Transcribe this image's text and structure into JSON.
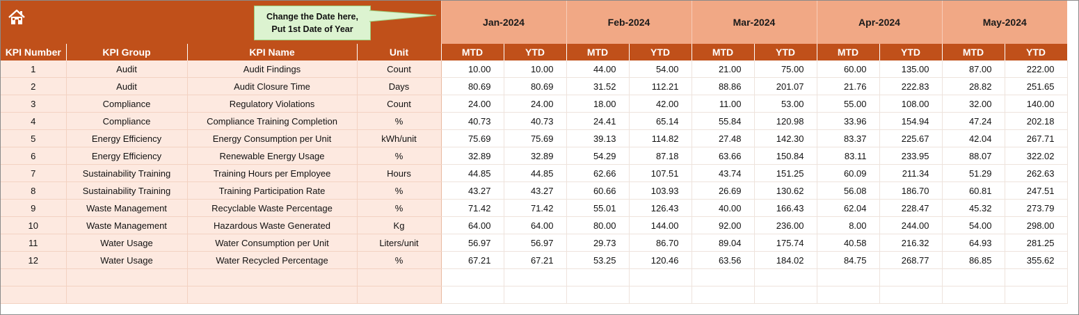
{
  "header": {
    "home_icon": "home-icon",
    "note_line1": "Change the Date here,",
    "note_line2": "Put 1st Date of Year",
    "months": [
      "Jan-2024",
      "Feb-2024",
      "Mar-2024",
      "Apr-2024",
      "May-2024"
    ]
  },
  "columns": {
    "kpi_number": "KPI Number",
    "kpi_group": "KPI Group",
    "kpi_name": "KPI Name",
    "unit": "Unit",
    "mtd": "MTD",
    "ytd": "YTD"
  },
  "rows": [
    {
      "num": "1",
      "group": "Audit",
      "name": "Audit Findings",
      "unit": "Count",
      "values": [
        "10.00",
        "10.00",
        "44.00",
        "54.00",
        "21.00",
        "75.00",
        "60.00",
        "135.00",
        "87.00",
        "222.00"
      ]
    },
    {
      "num": "2",
      "group": "Audit",
      "name": "Audit Closure Time",
      "unit": "Days",
      "values": [
        "80.69",
        "80.69",
        "31.52",
        "112.21",
        "88.86",
        "201.07",
        "21.76",
        "222.83",
        "28.82",
        "251.65"
      ]
    },
    {
      "num": "3",
      "group": "Compliance",
      "name": "Regulatory Violations",
      "unit": "Count",
      "values": [
        "24.00",
        "24.00",
        "18.00",
        "42.00",
        "11.00",
        "53.00",
        "55.00",
        "108.00",
        "32.00",
        "140.00"
      ]
    },
    {
      "num": "4",
      "group": "Compliance",
      "name": "Compliance Training Completion",
      "unit": "%",
      "values": [
        "40.73",
        "40.73",
        "24.41",
        "65.14",
        "55.84",
        "120.98",
        "33.96",
        "154.94",
        "47.24",
        "202.18"
      ]
    },
    {
      "num": "5",
      "group": "Energy Efficiency",
      "name": "Energy Consumption per Unit",
      "unit": "kWh/unit",
      "values": [
        "75.69",
        "75.69",
        "39.13",
        "114.82",
        "27.48",
        "142.30",
        "83.37",
        "225.67",
        "42.04",
        "267.71"
      ]
    },
    {
      "num": "6",
      "group": "Energy Efficiency",
      "name": "Renewable Energy Usage",
      "unit": "%",
      "values": [
        "32.89",
        "32.89",
        "54.29",
        "87.18",
        "63.66",
        "150.84",
        "83.11",
        "233.95",
        "88.07",
        "322.02"
      ]
    },
    {
      "num": "7",
      "group": "Sustainability Training",
      "name": "Training Hours per Employee",
      "unit": "Hours",
      "values": [
        "44.85",
        "44.85",
        "62.66",
        "107.51",
        "43.74",
        "151.25",
        "60.09",
        "211.34",
        "51.29",
        "262.63"
      ]
    },
    {
      "num": "8",
      "group": "Sustainability Training",
      "name": "Training Participation Rate",
      "unit": "%",
      "values": [
        "43.27",
        "43.27",
        "60.66",
        "103.93",
        "26.69",
        "130.62",
        "56.08",
        "186.70",
        "60.81",
        "247.51"
      ]
    },
    {
      "num": "9",
      "group": "Waste Management",
      "name": "Recyclable Waste Percentage",
      "unit": "%",
      "values": [
        "71.42",
        "71.42",
        "55.01",
        "126.43",
        "40.00",
        "166.43",
        "62.04",
        "228.47",
        "45.32",
        "273.79"
      ]
    },
    {
      "num": "10",
      "group": "Waste Management",
      "name": "Hazardous Waste Generated",
      "unit": "Kg",
      "values": [
        "64.00",
        "64.00",
        "80.00",
        "144.00",
        "92.00",
        "236.00",
        "8.00",
        "244.00",
        "54.00",
        "298.00"
      ]
    },
    {
      "num": "11",
      "group": "Water Usage",
      "name": "Water Consumption per Unit",
      "unit": "Liters/unit",
      "values": [
        "56.97",
        "56.97",
        "29.73",
        "86.70",
        "89.04",
        "175.74",
        "40.58",
        "216.32",
        "64.93",
        "281.25"
      ]
    },
    {
      "num": "12",
      "group": "Water Usage",
      "name": "Water Recycled Percentage",
      "unit": "%",
      "values": [
        "67.21",
        "67.21",
        "53.25",
        "120.46",
        "63.56",
        "184.02",
        "84.75",
        "268.77",
        "86.85",
        "355.62"
      ]
    },
    {
      "num": "",
      "group": "",
      "name": "",
      "unit": "",
      "values": [
        "",
        "",
        "",
        "",
        "",
        "",
        "",
        "",
        "",
        ""
      ]
    },
    {
      "num": "",
      "group": "",
      "name": "",
      "unit": "",
      "values": [
        "",
        "",
        "",
        "",
        "",
        "",
        "",
        "",
        "",
        ""
      ]
    }
  ]
}
